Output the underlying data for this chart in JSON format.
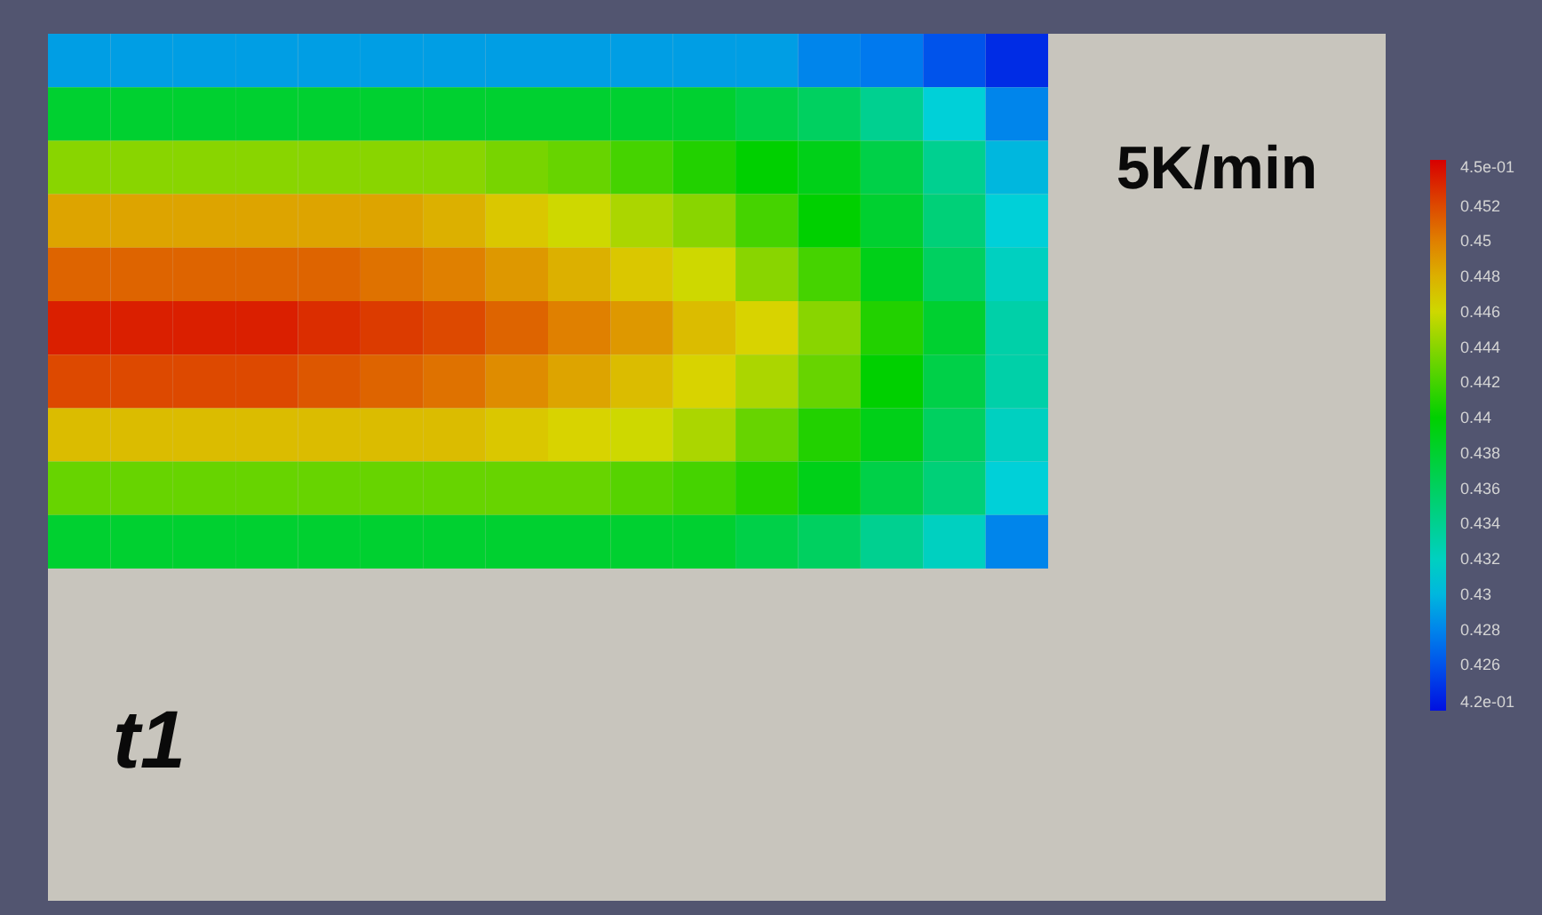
{
  "chart_data": {
    "type": "heatmap",
    "categories": [
      null,
      null,
      null,
      null,
      null,
      null,
      null,
      null,
      null,
      null,
      null,
      null,
      null,
      null,
      null,
      null
    ],
    "y_categories": [
      null,
      null,
      null,
      null,
      null,
      null,
      null,
      null,
      null,
      null
    ],
    "cells": [
      [
        0.429,
        0.429,
        0.429,
        0.429,
        0.429,
        0.429,
        0.429,
        0.429,
        0.429,
        0.429,
        0.429,
        0.429,
        0.428,
        0.4275,
        0.426,
        0.4245
      ],
      [
        0.438,
        0.438,
        0.438,
        0.438,
        0.438,
        0.438,
        0.438,
        0.438,
        0.438,
        0.438,
        0.438,
        0.437,
        0.436,
        0.434,
        0.431,
        0.428
      ],
      [
        0.444,
        0.444,
        0.444,
        0.444,
        0.444,
        0.444,
        0.444,
        0.4435,
        0.443,
        0.442,
        0.441,
        0.44,
        0.439,
        0.437,
        0.434,
        0.43
      ],
      [
        0.4485,
        0.4485,
        0.4485,
        0.4485,
        0.4485,
        0.4485,
        0.448,
        0.447,
        0.446,
        0.445,
        0.444,
        0.442,
        0.44,
        0.438,
        0.435,
        0.431
      ],
      [
        0.451,
        0.451,
        0.451,
        0.451,
        0.451,
        0.4505,
        0.45,
        0.449,
        0.448,
        0.447,
        0.446,
        0.444,
        0.442,
        0.439,
        0.436,
        0.432
      ],
      [
        0.4535,
        0.4535,
        0.4535,
        0.4535,
        0.453,
        0.4525,
        0.452,
        0.451,
        0.45,
        0.449,
        0.4475,
        0.4465,
        0.444,
        0.441,
        0.438,
        0.433
      ],
      [
        0.452,
        0.452,
        0.452,
        0.452,
        0.4515,
        0.451,
        0.4505,
        0.4495,
        0.4485,
        0.4475,
        0.4465,
        0.445,
        0.443,
        0.44,
        0.437,
        0.433
      ],
      [
        0.4475,
        0.4475,
        0.4475,
        0.4475,
        0.4475,
        0.4475,
        0.4475,
        0.447,
        0.4465,
        0.446,
        0.445,
        0.443,
        0.441,
        0.439,
        0.436,
        0.432
      ],
      [
        0.443,
        0.443,
        0.443,
        0.443,
        0.443,
        0.443,
        0.443,
        0.443,
        0.443,
        0.4425,
        0.442,
        0.441,
        0.439,
        0.437,
        0.435,
        0.431
      ],
      [
        0.438,
        0.438,
        0.438,
        0.438,
        0.438,
        0.438,
        0.438,
        0.438,
        0.438,
        0.438,
        0.438,
        0.437,
        0.436,
        0.434,
        0.432,
        0.428
      ]
    ],
    "clim": [
      0.4234,
      0.4546
    ],
    "cticks": [
      {
        "value": 0.4234,
        "label": "4.2e-01"
      },
      0.426,
      0.428,
      0.43,
      0.432,
      0.434,
      0.436,
      0.438,
      0.44,
      0.442,
      0.444,
      0.446,
      0.448,
      0.45,
      0.452,
      {
        "value": 0.4546,
        "label": "4.5e-01"
      }
    ],
    "annotations": [
      "5K/min",
      "t1"
    ]
  }
}
